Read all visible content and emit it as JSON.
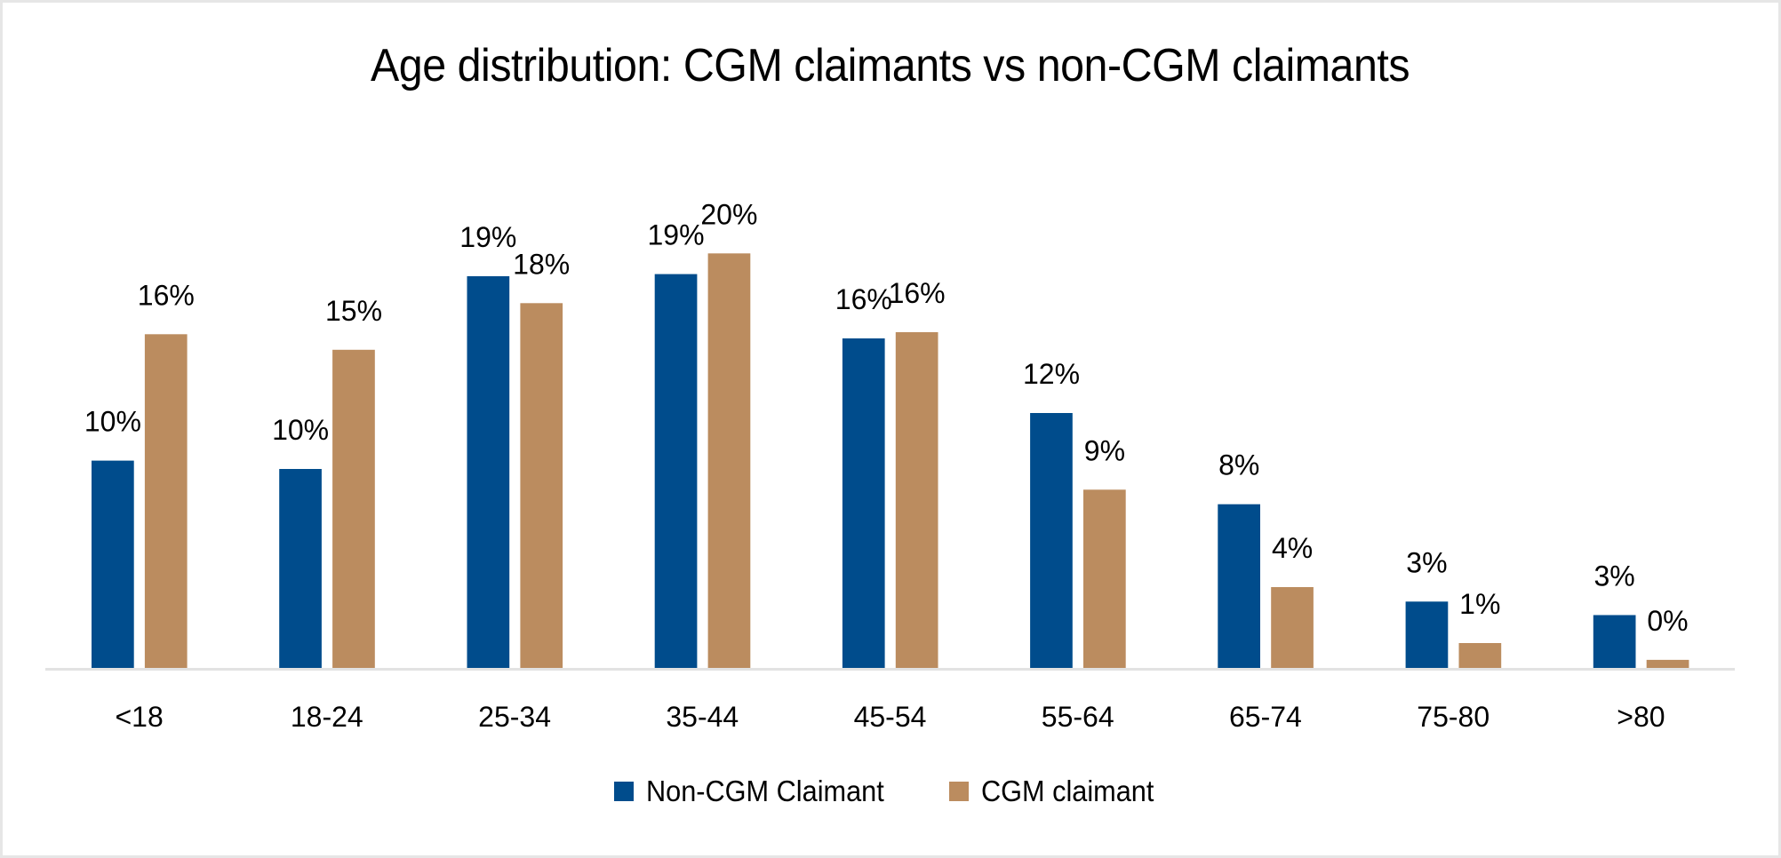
{
  "chart_data": {
    "type": "bar",
    "title": "Age distribution: CGM claimants vs non-CGM claimants",
    "xlabel": "",
    "ylabel": "",
    "ylim": [
      0,
      20
    ],
    "grid": false,
    "legend_position": "bottom",
    "categories": [
      "<18",
      "18-24",
      "25-34",
      "35-44",
      "45-54",
      "55-64",
      "65-74",
      "75-80",
      ">80"
    ],
    "series": [
      {
        "name": "Non-CGM Claimant",
        "color": "#004C8C",
        "values": [
          10.0,
          9.6,
          18.9,
          19.0,
          15.9,
          12.3,
          7.9,
          3.2,
          2.55
        ],
        "labels": [
          "10%",
          "10%",
          "19%",
          "19%",
          "16%",
          "12%",
          "8%",
          "3%",
          "3%"
        ]
      },
      {
        "name": "CGM claimant",
        "color": "#BB8C5F",
        "values": [
          16.1,
          15.35,
          17.6,
          20.0,
          16.2,
          8.6,
          3.9,
          1.2,
          0.39
        ],
        "labels": [
          "16%",
          "15%",
          "18%",
          "20%",
          "16%",
          "9%",
          "4%",
          "1%",
          "0%"
        ]
      }
    ]
  }
}
